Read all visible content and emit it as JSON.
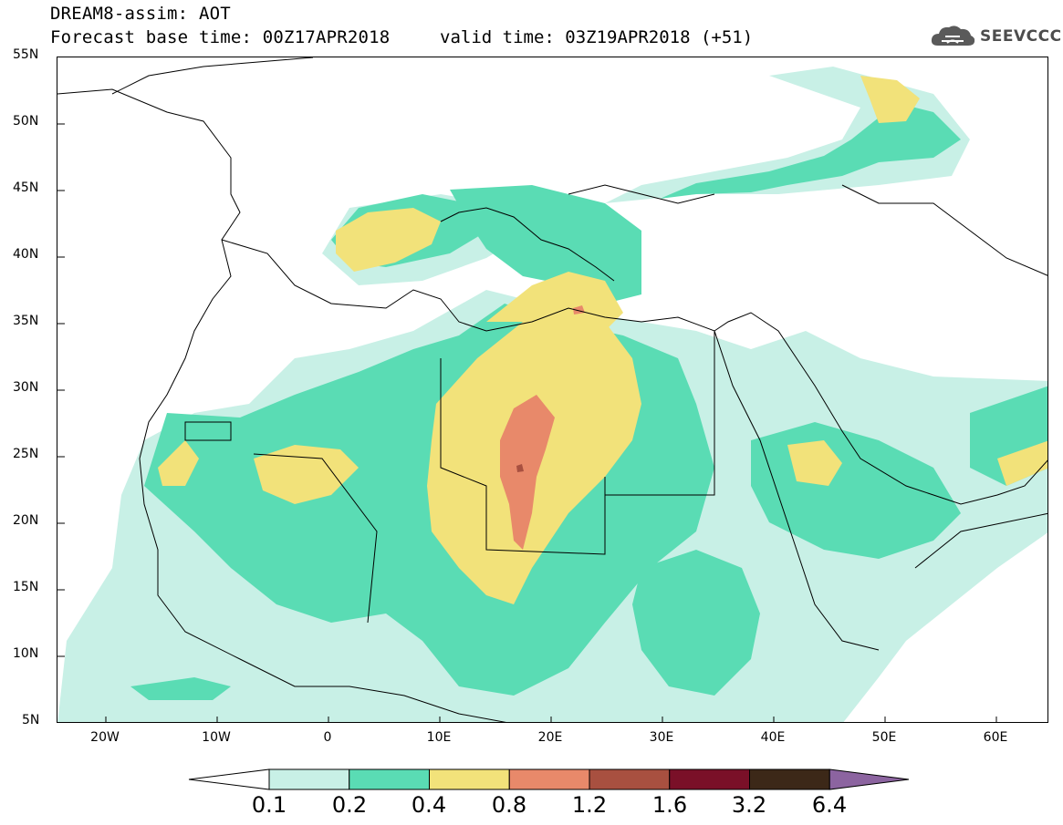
{
  "header": {
    "title_line1": "DREAM8-assim: AOT",
    "title_line2": "Forecast base time: 00Z17APR2018",
    "valid_time": "valid time: 03Z19APR2018 (+51)"
  },
  "logo": {
    "text": "SEEVCCC",
    "icon": "cloud-icon"
  },
  "map": {
    "latitude_labels": [
      "55N",
      "50N",
      "45N",
      "40N",
      "35N",
      "30N",
      "25N",
      "20N",
      "15N",
      "10N",
      "5N"
    ],
    "longitude_labels": [
      "20W",
      "10W",
      "0",
      "10E",
      "20E",
      "30E",
      "40E",
      "50E",
      "60E"
    ]
  },
  "colorbar": {
    "labels": [
      "0.1",
      "0.2",
      "0.4",
      "0.8",
      "1.2",
      "1.6",
      "3.2",
      "6.4"
    ],
    "colors": [
      "#ffffff",
      "#c8f0e6",
      "#5adcb4",
      "#f2e27a",
      "#e8896a",
      "#a85040",
      "#7a1028",
      "#3c2818",
      "#8c64a0"
    ]
  }
}
